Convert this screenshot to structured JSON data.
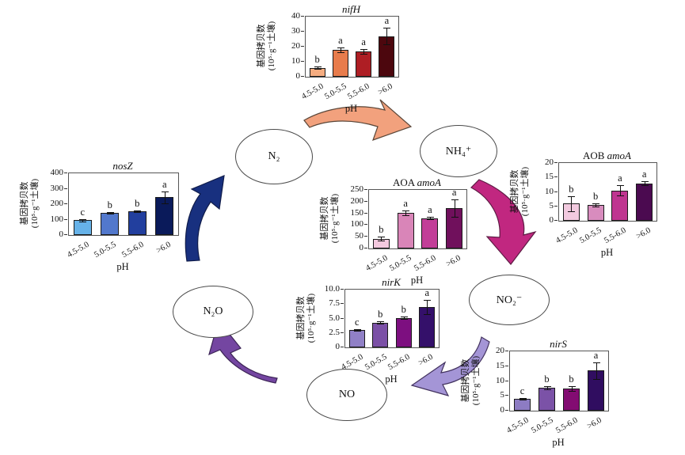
{
  "figure": {
    "background": "#ffffff",
    "xlabel": "pH",
    "ylabel_line1": "基因拷贝数",
    "ylabel_line2": "(10⁵·g⁻¹土壤)",
    "categories": [
      "4.5-5.0",
      "5.0-5.5",
      "5.5-6.0",
      ">6.0"
    ]
  },
  "chart_data": [
    {
      "type": "bar",
      "id": "nifH",
      "title_prefix": "",
      "title_italic": "nifH",
      "categories": [
        "4.5-5.0",
        "5.0-5.5",
        "5.5-6.0",
        ">6.0"
      ],
      "values": [
        6,
        18,
        17,
        27
      ],
      "errors": [
        0.8,
        1.5,
        1.5,
        5.5
      ],
      "sig_letters": [
        "b",
        "a",
        "a",
        "a"
      ],
      "bar_colors": [
        "#F5AC80",
        "#E87C4C",
        "#AE1E24",
        "#4C070E"
      ],
      "ylim": [
        0,
        40
      ],
      "yticks": [
        "0",
        "10",
        "20",
        "30",
        "40"
      ],
      "xlabel": "pH",
      "ylabel": "基因拷贝数 (10⁵·g⁻¹土壤)"
    },
    {
      "type": "bar",
      "id": "nosZ",
      "title_prefix": "",
      "title_italic": "nosZ",
      "categories": [
        "4.5-5.0",
        "5.0-5.5",
        "5.5-6.0",
        ">6.0"
      ],
      "values": [
        95,
        145,
        155,
        245
      ],
      "errors": [
        8,
        6,
        6,
        38
      ],
      "sig_letters": [
        "c",
        "b",
        "b",
        "a"
      ],
      "bar_colors": [
        "#66B2E8",
        "#5278CC",
        "#223F9E",
        "#0A1A5A"
      ],
      "ylim": [
        0,
        400
      ],
      "yticks": [
        "0",
        "100",
        "200",
        "300",
        "400"
      ],
      "xlabel": "pH",
      "ylabel": "基因拷贝数 (10⁵·g⁻¹土壤)"
    },
    {
      "type": "bar",
      "id": "aoaAmoA",
      "title_prefix": "AOA ",
      "title_italic": "amoA",
      "categories": [
        "4.5-5.0",
        "5.0-5.5",
        "5.5-6.0",
        ">6.0"
      ],
      "values": [
        42,
        152,
        130,
        173
      ],
      "errors": [
        7,
        10,
        6,
        38
      ],
      "sig_letters": [
        "b",
        "a",
        "a",
        "a"
      ],
      "bar_colors": [
        "#F4C9DF",
        "#D985B8",
        "#C23E98",
        "#70105C"
      ],
      "ylim": [
        0,
        250
      ],
      "yticks": [
        "0",
        "50",
        "100",
        "150",
        "200",
        "250"
      ],
      "xlabel": "pH",
      "ylabel": "基因拷贝数 (10⁵·g⁻¹土壤)"
    },
    {
      "type": "bar",
      "id": "aobAmoA",
      "title_prefix": "AOB ",
      "title_italic": "amoA",
      "categories": [
        "4.5-5.0",
        "5.0-5.5",
        "5.5-6.0",
        ">6.0"
      ],
      "values": [
        6,
        5.5,
        10.5,
        13
      ],
      "errors": [
        2.6,
        0.5,
        1.8,
        0.6
      ],
      "sig_letters": [
        "b",
        "b",
        "a",
        "a"
      ],
      "bar_colors": [
        "#F2CADF",
        "#D88CBE",
        "#BF3590",
        "#4B0A50"
      ],
      "ylim": [
        0,
        20
      ],
      "yticks": [
        "0",
        "5",
        "10",
        "15",
        "20"
      ],
      "xlabel": "pH",
      "ylabel": "基因拷贝数 (10⁵·g⁻¹土壤)"
    },
    {
      "type": "bar",
      "id": "nirK",
      "title_prefix": "",
      "title_italic": "nirK",
      "categories": [
        "4.5-5.0",
        "5.0-5.5",
        "5.5-6.0",
        ">6.0"
      ],
      "values": [
        3,
        4.3,
        5.1,
        7
      ],
      "errors": [
        0.15,
        0.25,
        0.2,
        1.2
      ],
      "sig_letters": [
        "c",
        "b",
        "b",
        "a"
      ],
      "bar_colors": [
        "#9080C6",
        "#7B50A6",
        "#7D0F80",
        "#34106A"
      ],
      "ylim": [
        0,
        10
      ],
      "yticks": [
        "0",
        "2.5",
        "5.0",
        "7.5",
        "10.0"
      ],
      "xlabel": "pH",
      "ylabel": "基因拷贝数 (10⁵·g⁻¹土壤)"
    },
    {
      "type": "bar",
      "id": "nirS",
      "title_prefix": "",
      "title_italic": "nirS",
      "categories": [
        "4.5-5.0",
        "5.0-5.5",
        "5.5-6.0",
        ">6.0"
      ],
      "values": [
        4,
        7.8,
        7.5,
        13.5
      ],
      "errors": [
        0.3,
        0.5,
        0.9,
        2.8
      ],
      "sig_letters": [
        "c",
        "b",
        "b",
        "a"
      ],
      "bar_colors": [
        "#8D7CC3",
        "#7B52A7",
        "#830C72",
        "#300D60"
      ],
      "ylim": [
        0,
        20
      ],
      "yticks": [
        "0",
        "5",
        "10",
        "15",
        "20"
      ],
      "xlabel": "pH",
      "ylabel": "基因拷贝数 (10⁵·g⁻¹土壤)"
    }
  ],
  "cycle": {
    "nodes": [
      {
        "id": "n2",
        "label": "N₂"
      },
      {
        "id": "nh4",
        "label": "NH₄⁺"
      },
      {
        "id": "no2",
        "label": "NO₂⁻"
      },
      {
        "id": "no",
        "label": "NO"
      },
      {
        "id": "n2o",
        "label": "N₂O"
      }
    ],
    "arrows": [
      {
        "from": "N₂",
        "to": "NH₄⁺",
        "fill": "#F2A17D",
        "stroke": "#5a4638"
      },
      {
        "from": "NH₄⁺",
        "to": "NO₂⁻",
        "fill": "#C12780",
        "stroke": "#5d1c44"
      },
      {
        "from": "NO₂⁻",
        "to": "NO",
        "fill": "#A495D6",
        "stroke": "#42325e"
      },
      {
        "from": "NO",
        "to": "N₂O",
        "fill": "#7446A1",
        "stroke": "#3c2456"
      },
      {
        "from": "N₂O",
        "to": "N₂",
        "fill": "#18307F",
        "stroke": "#101c4a"
      }
    ]
  }
}
